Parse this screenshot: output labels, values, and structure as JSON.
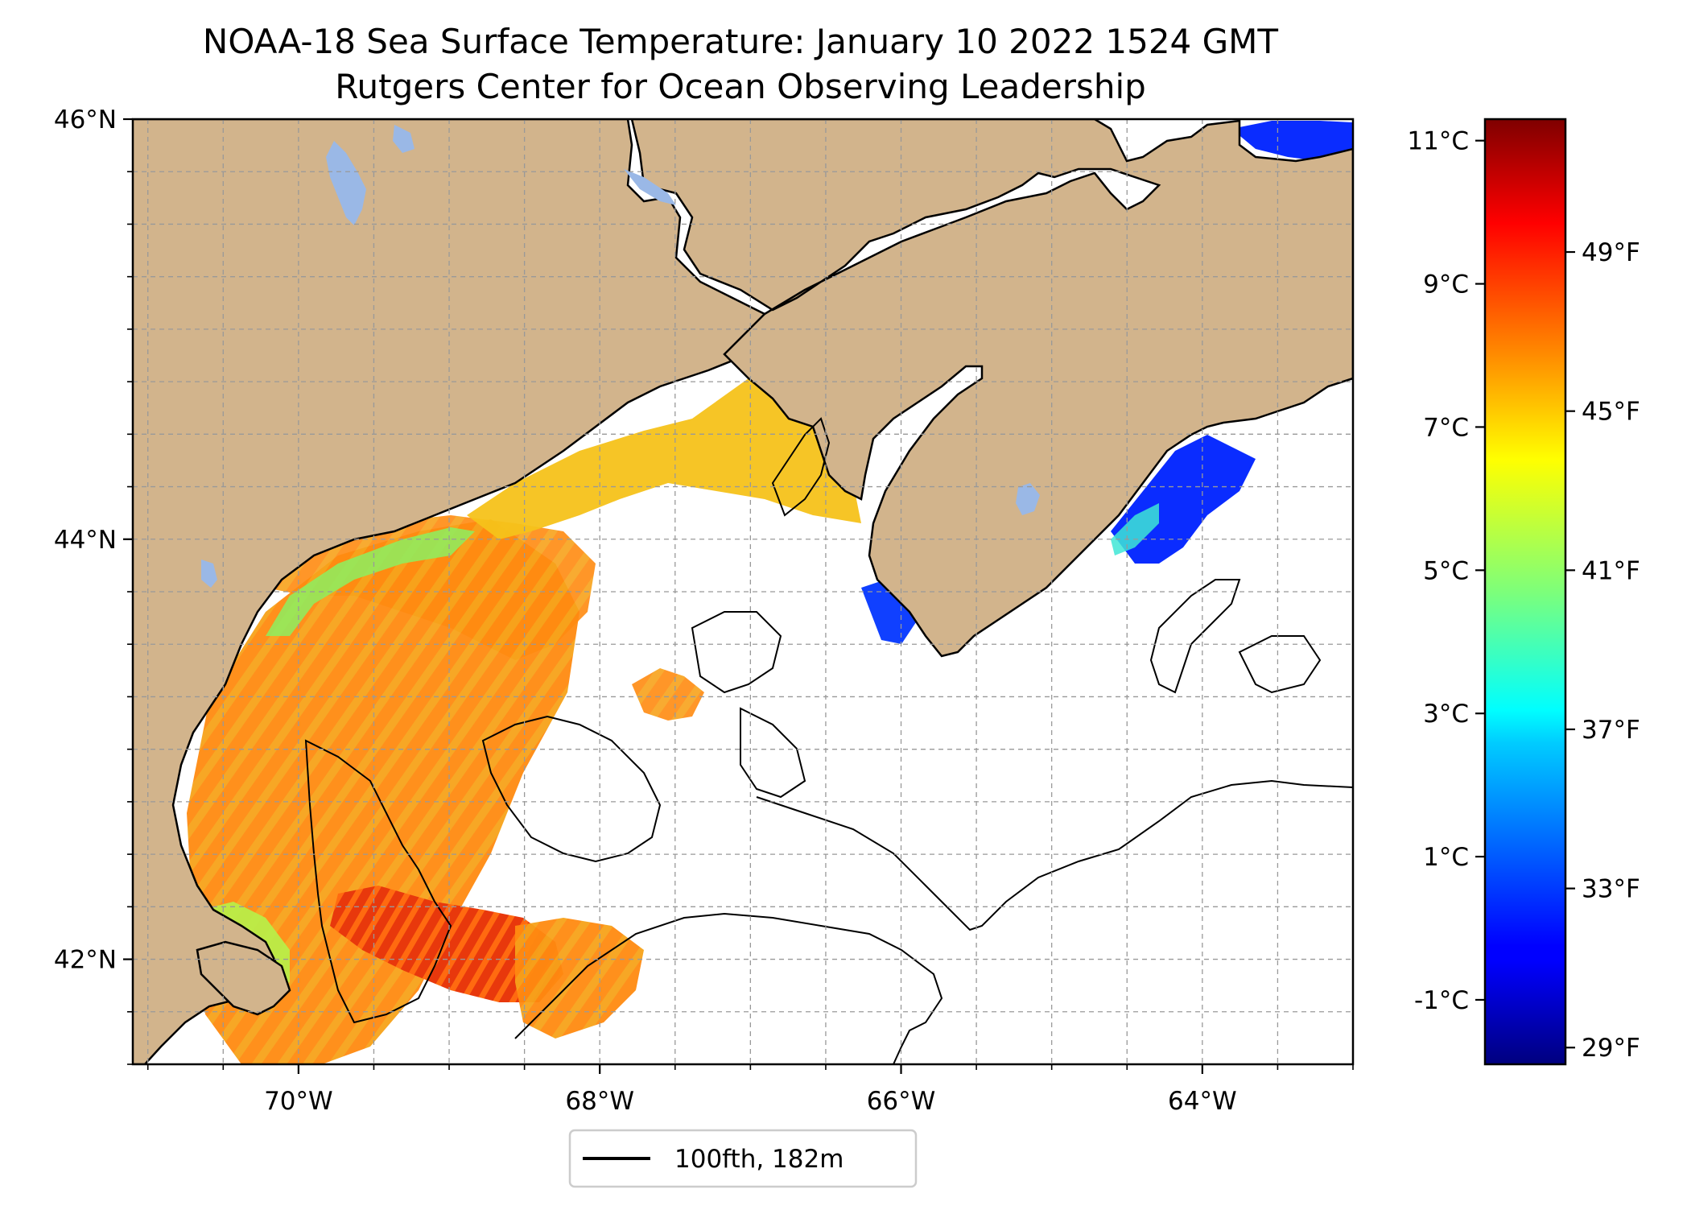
{
  "title": "NOAA-18 Sea Surface Temperature: January 10 2022 1524 GMT",
  "subtitle": "Rutgers Center for Ocean Observing Leadership",
  "map": {
    "lon_range": [
      -71.1,
      -63.0
    ],
    "lat_range": [
      41.5,
      46.0
    ],
    "lon_ticks": [
      {
        "value": -70,
        "label": "70°W"
      },
      {
        "value": -68,
        "label": "68°W"
      },
      {
        "value": -66,
        "label": "66°W"
      },
      {
        "value": -64,
        "label": "64°W"
      }
    ],
    "lat_ticks": [
      {
        "value": 46,
        "label": "46°N"
      },
      {
        "value": 44,
        "label": "44°N"
      },
      {
        "value": 42,
        "label": "42°N"
      }
    ],
    "gridlines": true,
    "land_color": "#d2b48c",
    "lake_color": "#9ab8e6",
    "ocean_color": "#ffffff",
    "contour_color": "#000000"
  },
  "legend": {
    "label": "100fth, 182m",
    "placement": "bottom-center"
  },
  "colorbar": {
    "colormap": "jet",
    "celsius_range": [
      -1.9,
      11.3
    ],
    "celsius_ticks": [
      {
        "value": 11,
        "label": "11°C"
      },
      {
        "value": 9,
        "label": "9°C"
      },
      {
        "value": 7,
        "label": "7°C"
      },
      {
        "value": 5,
        "label": "5°C"
      },
      {
        "value": 3,
        "label": "3°C"
      },
      {
        "value": 1,
        "label": "1°C"
      },
      {
        "value": -1,
        "label": "-1°C"
      }
    ],
    "fahrenheit_ticks": [
      {
        "value": 49,
        "label": "49°F"
      },
      {
        "value": 45,
        "label": "45°F"
      },
      {
        "value": 41,
        "label": "41°F"
      },
      {
        "value": 37,
        "label": "37°F"
      },
      {
        "value": 33,
        "label": "33°F"
      },
      {
        "value": 29,
        "label": "29°F"
      }
    ]
  }
}
